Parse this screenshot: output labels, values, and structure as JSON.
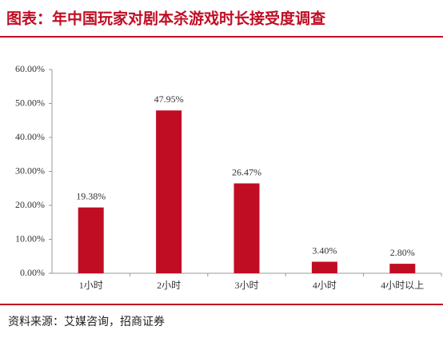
{
  "chart_data": {
    "type": "bar",
    "title": "图表：年中国玩家对剧本杀游戏时长接受度调查",
    "source": "资料来源：艾媒咨询，招商证券",
    "categories": [
      "1小时",
      "2小时",
      "3小时",
      "4小时",
      "4小时以上"
    ],
    "values": [
      19.38,
      47.95,
      26.47,
      3.4,
      2.8
    ],
    "value_labels": [
      "19.38%",
      "47.95%",
      "26.47%",
      "3.40%",
      "2.80%"
    ],
    "color": "#c00d23",
    "ylim": [
      0,
      60
    ],
    "yticks": [
      {
        "value": 0,
        "label": "0.00%"
      },
      {
        "value": 10,
        "label": "10.00%"
      },
      {
        "value": 20,
        "label": "20.00%"
      },
      {
        "value": 30,
        "label": "30.00%"
      },
      {
        "value": 40,
        "label": "40.00%"
      },
      {
        "value": 50,
        "label": "50.00%"
      },
      {
        "value": 60,
        "label": "60.00%"
      }
    ],
    "grid": false
  }
}
